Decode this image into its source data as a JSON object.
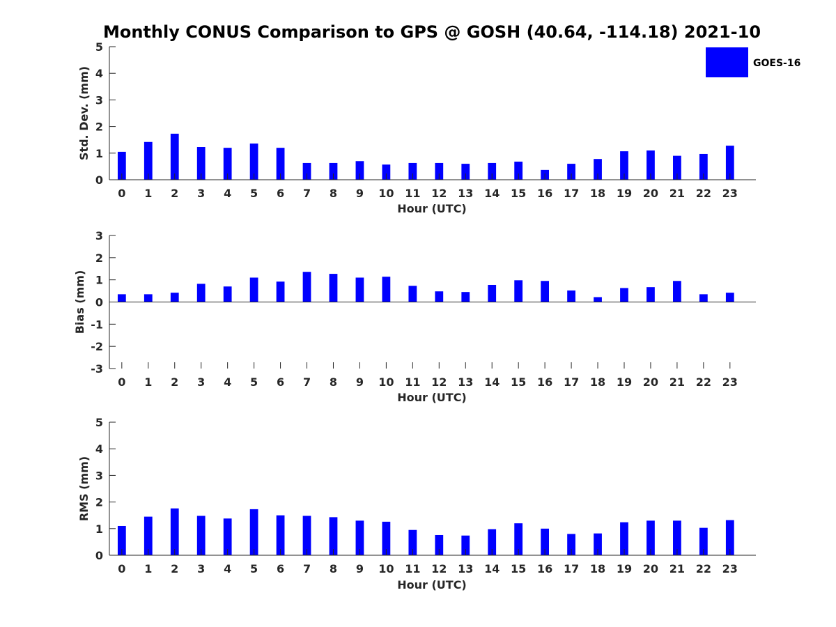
{
  "chart_data": {
    "title": "Monthly CONUS Comparison to GPS @ GOSH (40.64, -114.18) 2021-10",
    "legend": {
      "label": "GOES-16",
      "color": "#0000ff",
      "position": "top-right"
    },
    "categories": [
      "0",
      "1",
      "2",
      "3",
      "4",
      "5",
      "6",
      "7",
      "8",
      "9",
      "10",
      "11",
      "12",
      "13",
      "14",
      "15",
      "16",
      "17",
      "18",
      "19",
      "20",
      "21",
      "22",
      "23"
    ],
    "panels": [
      {
        "type": "bar",
        "key": "std",
        "ylabel": "Std. Dev. (mm)",
        "xlabel": "Hour (UTC)",
        "ylim": [
          0,
          5
        ],
        "yticks": [
          "0",
          "1",
          "2",
          "3",
          "4",
          "5"
        ],
        "series": [
          {
            "name": "GOES-16",
            "values": [
              1.05,
              1.42,
              1.73,
              1.23,
              1.2,
              1.36,
              1.2,
              0.63,
              0.63,
              0.7,
              0.57,
              0.63,
              0.63,
              0.6,
              0.63,
              0.68,
              0.37,
              0.6,
              0.78,
              1.07,
              1.1,
              0.9,
              0.97,
              1.28
            ]
          }
        ]
      },
      {
        "type": "bar",
        "key": "bias",
        "ylabel": "Bias (mm)",
        "xlabel": "Hour (UTC)",
        "ylim": [
          -3,
          3
        ],
        "yticks": [
          "-3",
          "-2",
          "-1",
          "0",
          "1",
          "2",
          "3"
        ],
        "series": [
          {
            "name": "GOES-16",
            "values": [
              0.35,
              0.35,
              0.42,
              0.82,
              0.7,
              1.1,
              0.92,
              1.36,
              1.27,
              1.1,
              1.14,
              0.73,
              0.48,
              0.45,
              0.77,
              0.98,
              0.95,
              0.52,
              0.22,
              0.63,
              0.67,
              0.95,
              0.35,
              0.42
            ]
          }
        ]
      },
      {
        "type": "bar",
        "key": "rms",
        "ylabel": "RMS (mm)",
        "xlabel": "Hour (UTC)",
        "ylim": [
          0,
          5
        ],
        "yticks": [
          "0",
          "1",
          "2",
          "3",
          "4",
          "5"
        ],
        "series": [
          {
            "name": "GOES-16",
            "values": [
              1.1,
              1.45,
              1.76,
              1.48,
              1.38,
              1.73,
              1.5,
              1.48,
              1.43,
              1.3,
              1.26,
              0.95,
              0.76,
              0.74,
              0.98,
              1.2,
              1.0,
              0.8,
              0.82,
              1.24,
              1.3,
              1.3,
              1.03,
              1.32
            ]
          }
        ]
      }
    ]
  }
}
